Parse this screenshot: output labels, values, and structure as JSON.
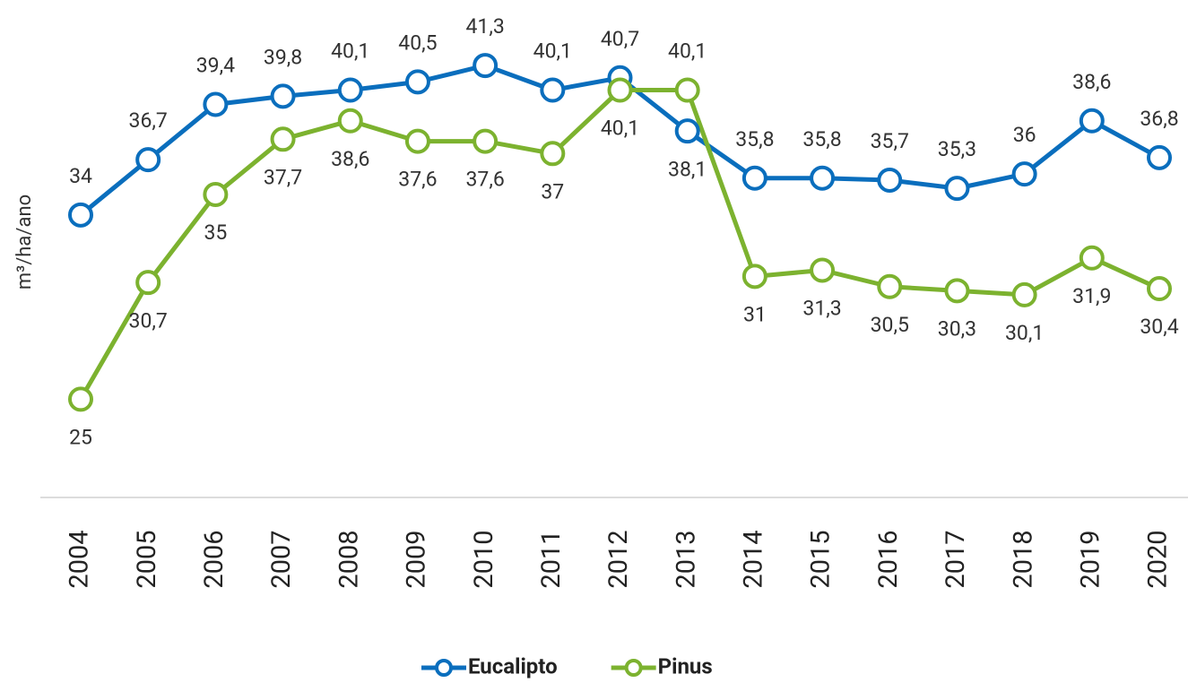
{
  "chart_data": {
    "type": "line",
    "y_label": "m³/ha/ano",
    "categories": [
      "2004",
      "2005",
      "2006",
      "2007",
      "2008",
      "2009",
      "2010",
      "2011",
      "2012",
      "2013",
      "2014",
      "2015",
      "2016",
      "2017",
      "2018",
      "2019",
      "2020"
    ],
    "series": [
      {
        "name": "Eucalipto",
        "color": "#0a6ebd",
        "values": [
          34,
          36.7,
          39.4,
          39.8,
          40.1,
          40.5,
          41.3,
          40.1,
          40.7,
          38.1,
          35.8,
          35.8,
          35.7,
          35.3,
          36,
          38.6,
          36.8
        ],
        "value_labels": [
          "34",
          "36,7",
          "39,4",
          "39,8",
          "40,1",
          "40,5",
          "41,3",
          "40,1",
          "40,7",
          "38,1",
          "35,8",
          "35,8",
          "35,7",
          "35,3",
          "36",
          "38,6",
          "36,8"
        ]
      },
      {
        "name": "Pinus",
        "color": "#7cb22f",
        "values": [
          25,
          30.7,
          35,
          37.7,
          38.6,
          37.6,
          37.6,
          37,
          40.1,
          40.1,
          31,
          31.3,
          30.5,
          30.3,
          30.1,
          31.9,
          30.4
        ],
        "value_labels": [
          "25",
          "30,7",
          "35",
          "37,7",
          "38,6",
          "37,6",
          "37,6",
          "37",
          "40,1",
          "40,1",
          "31",
          "31,3",
          "30,5",
          "30,3",
          "30,1",
          "31,9",
          "30,4"
        ]
      }
    ],
    "ylim": [
      20.2,
      44.5
    ],
    "legend": "bottom"
  }
}
